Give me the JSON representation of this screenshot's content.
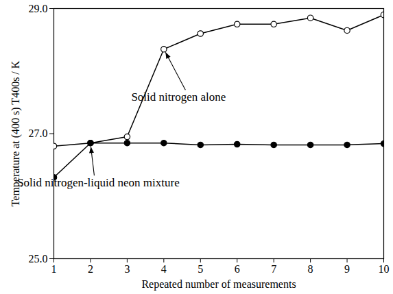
{
  "chart_data": {
    "type": "line",
    "x_label": "Repeated number of measurements",
    "y_label": "Temperature at (400 s) T400s / K",
    "x": [
      1,
      2,
      3,
      4,
      5,
      6,
      7,
      8,
      9,
      10
    ],
    "series": [
      {
        "name": "Solid nitrogen alone",
        "color": "#000000",
        "marker": "open_circle",
        "values": [
          26.8,
          26.85,
          26.95,
          28.35,
          28.6,
          28.75,
          28.75,
          28.85,
          28.65,
          28.9
        ]
      },
      {
        "name": "Solid nitrogen-liquid neon mixture",
        "color": "#000000",
        "marker": "filled_circle",
        "values": [
          26.3,
          26.85,
          26.85,
          26.85,
          26.82,
          26.83,
          26.82,
          26.82,
          26.82,
          26.84
        ]
      }
    ],
    "annotations": [
      {
        "text": "Solid nitrogen alone",
        "x": 4,
        "y": 28.35
      },
      {
        "text": "Solid nitrogen-liquid neon mixture",
        "x": 2,
        "y": 26.85
      }
    ],
    "xlim": [
      1,
      10
    ],
    "xticks": [
      1,
      2,
      3,
      4,
      5,
      6,
      7,
      8,
      9,
      10
    ],
    "ylim": [
      25,
      29
    ],
    "yticks": [
      {
        "value": 25,
        "label": "25.0"
      },
      {
        "value": 27,
        "label": "27.0"
      },
      {
        "value": 29,
        "label": "29.0"
      }
    ],
    "grid": false
  }
}
